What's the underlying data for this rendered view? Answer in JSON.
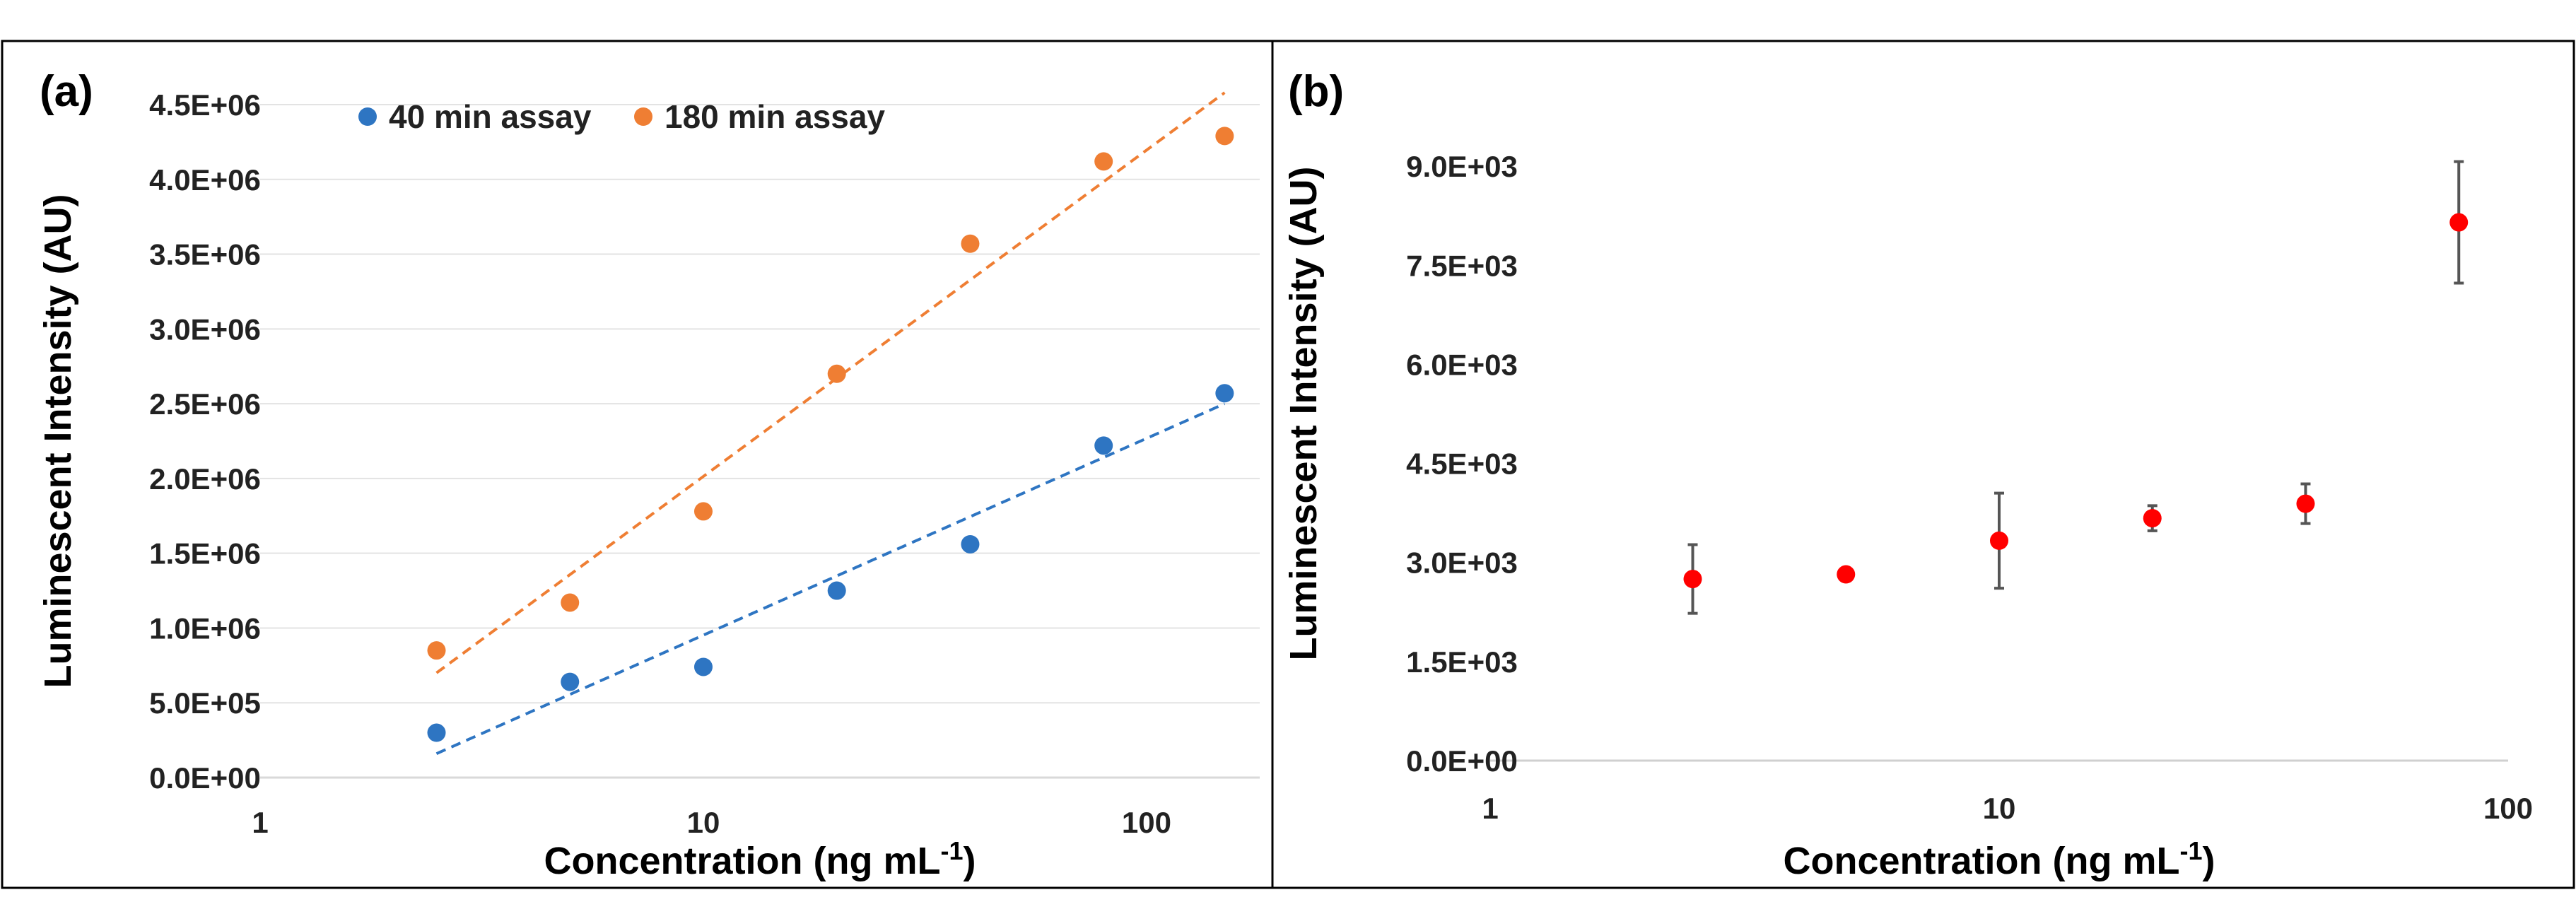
{
  "panels": [
    {
      "label": "(a)",
      "chart_data": {
        "type": "scatter",
        "x_scale": "log",
        "xlabel_main": "Concentration (ng mL",
        "xlabel_sup": "-1",
        "xlabel_end": ")",
        "ylabel": "Luminescent Intensity  (AU)",
        "xlim": [
          1,
          180
        ],
        "ylim": [
          0,
          4500000
        ],
        "x_ticks": [
          {
            "value": 1,
            "label": "1"
          },
          {
            "value": 10,
            "label": "10"
          },
          {
            "value": 100,
            "label": "100"
          }
        ],
        "y_ticks": [
          {
            "value": 0,
            "label": "0.0E+00"
          },
          {
            "value": 500000,
            "label": "5.0E+05"
          },
          {
            "value": 1000000,
            "label": "1.0E+06"
          },
          {
            "value": 1500000,
            "label": "1.5E+06"
          },
          {
            "value": 2000000,
            "label": "2.0E+06"
          },
          {
            "value": 2500000,
            "label": "2.5E+06"
          },
          {
            "value": 3000000,
            "label": "3.0E+06"
          },
          {
            "value": 3500000,
            "label": "3.5E+06"
          },
          {
            "value": 4000000,
            "label": "4.0E+06"
          },
          {
            "value": 4500000,
            "label": "4.5E+06"
          }
        ],
        "legend_position": "top",
        "series": [
          {
            "name": "40 min assay",
            "color": "#2e75c2",
            "x": [
              2.5,
              5,
              10,
              20,
              40,
              80,
              150
            ],
            "y": [
              300000,
              640000,
              740000,
              1250000,
              1560000,
              2220000,
              2570000
            ],
            "trendline": {
              "type": "log",
              "x_range": [
                2.5,
                150
              ],
              "y_range": [
                160000,
                2500000
              ]
            }
          },
          {
            "name": "180 min assay",
            "color": "#ef7e33",
            "x": [
              2.5,
              5,
              10,
              20,
              40,
              80,
              150
            ],
            "y": [
              850000,
              1170000,
              1780000,
              2700000,
              3570000,
              4120000,
              4290000
            ],
            "trendline": {
              "type": "log",
              "x_range": [
                2.5,
                150
              ],
              "y_range": [
                700000,
                4580000
              ]
            }
          }
        ]
      }
    },
    {
      "label": "(b)",
      "chart_data": {
        "type": "scatter",
        "x_scale": "log",
        "xlabel_main": "Concentration (ng mL",
        "xlabel_sup": "-1",
        "xlabel_end": ")",
        "ylabel": "Luminescent Intensity (AU)",
        "xlim": [
          1,
          100
        ],
        "ylim": [
          0,
          10500
        ],
        "x_ticks": [
          {
            "value": 1,
            "label": "1"
          },
          {
            "value": 10,
            "label": "10"
          },
          {
            "value": 100,
            "label": "100"
          }
        ],
        "y_ticks": [
          {
            "value": 0,
            "label": "0.0E+00"
          },
          {
            "value": 1500,
            "label": "1.5E+03"
          },
          {
            "value": 3000,
            "label": "3.0E+03"
          },
          {
            "value": 4500,
            "label": "4.5E+03"
          },
          {
            "value": 6000,
            "label": "6.0E+03"
          },
          {
            "value": 7500,
            "label": "7.5E+03"
          },
          {
            "value": 9000,
            "label": "9.0E+03"
          }
        ],
        "series": [
          {
            "name": "",
            "color": "#ff0000",
            "x": [
              2.5,
              5,
              10,
              20,
              40,
              80
            ],
            "y": [
              2750,
              2820,
              3330,
              3670,
              3890,
              8150
            ],
            "error": [
              520,
              0,
              720,
              190,
              300,
              920
            ]
          }
        ]
      }
    }
  ]
}
